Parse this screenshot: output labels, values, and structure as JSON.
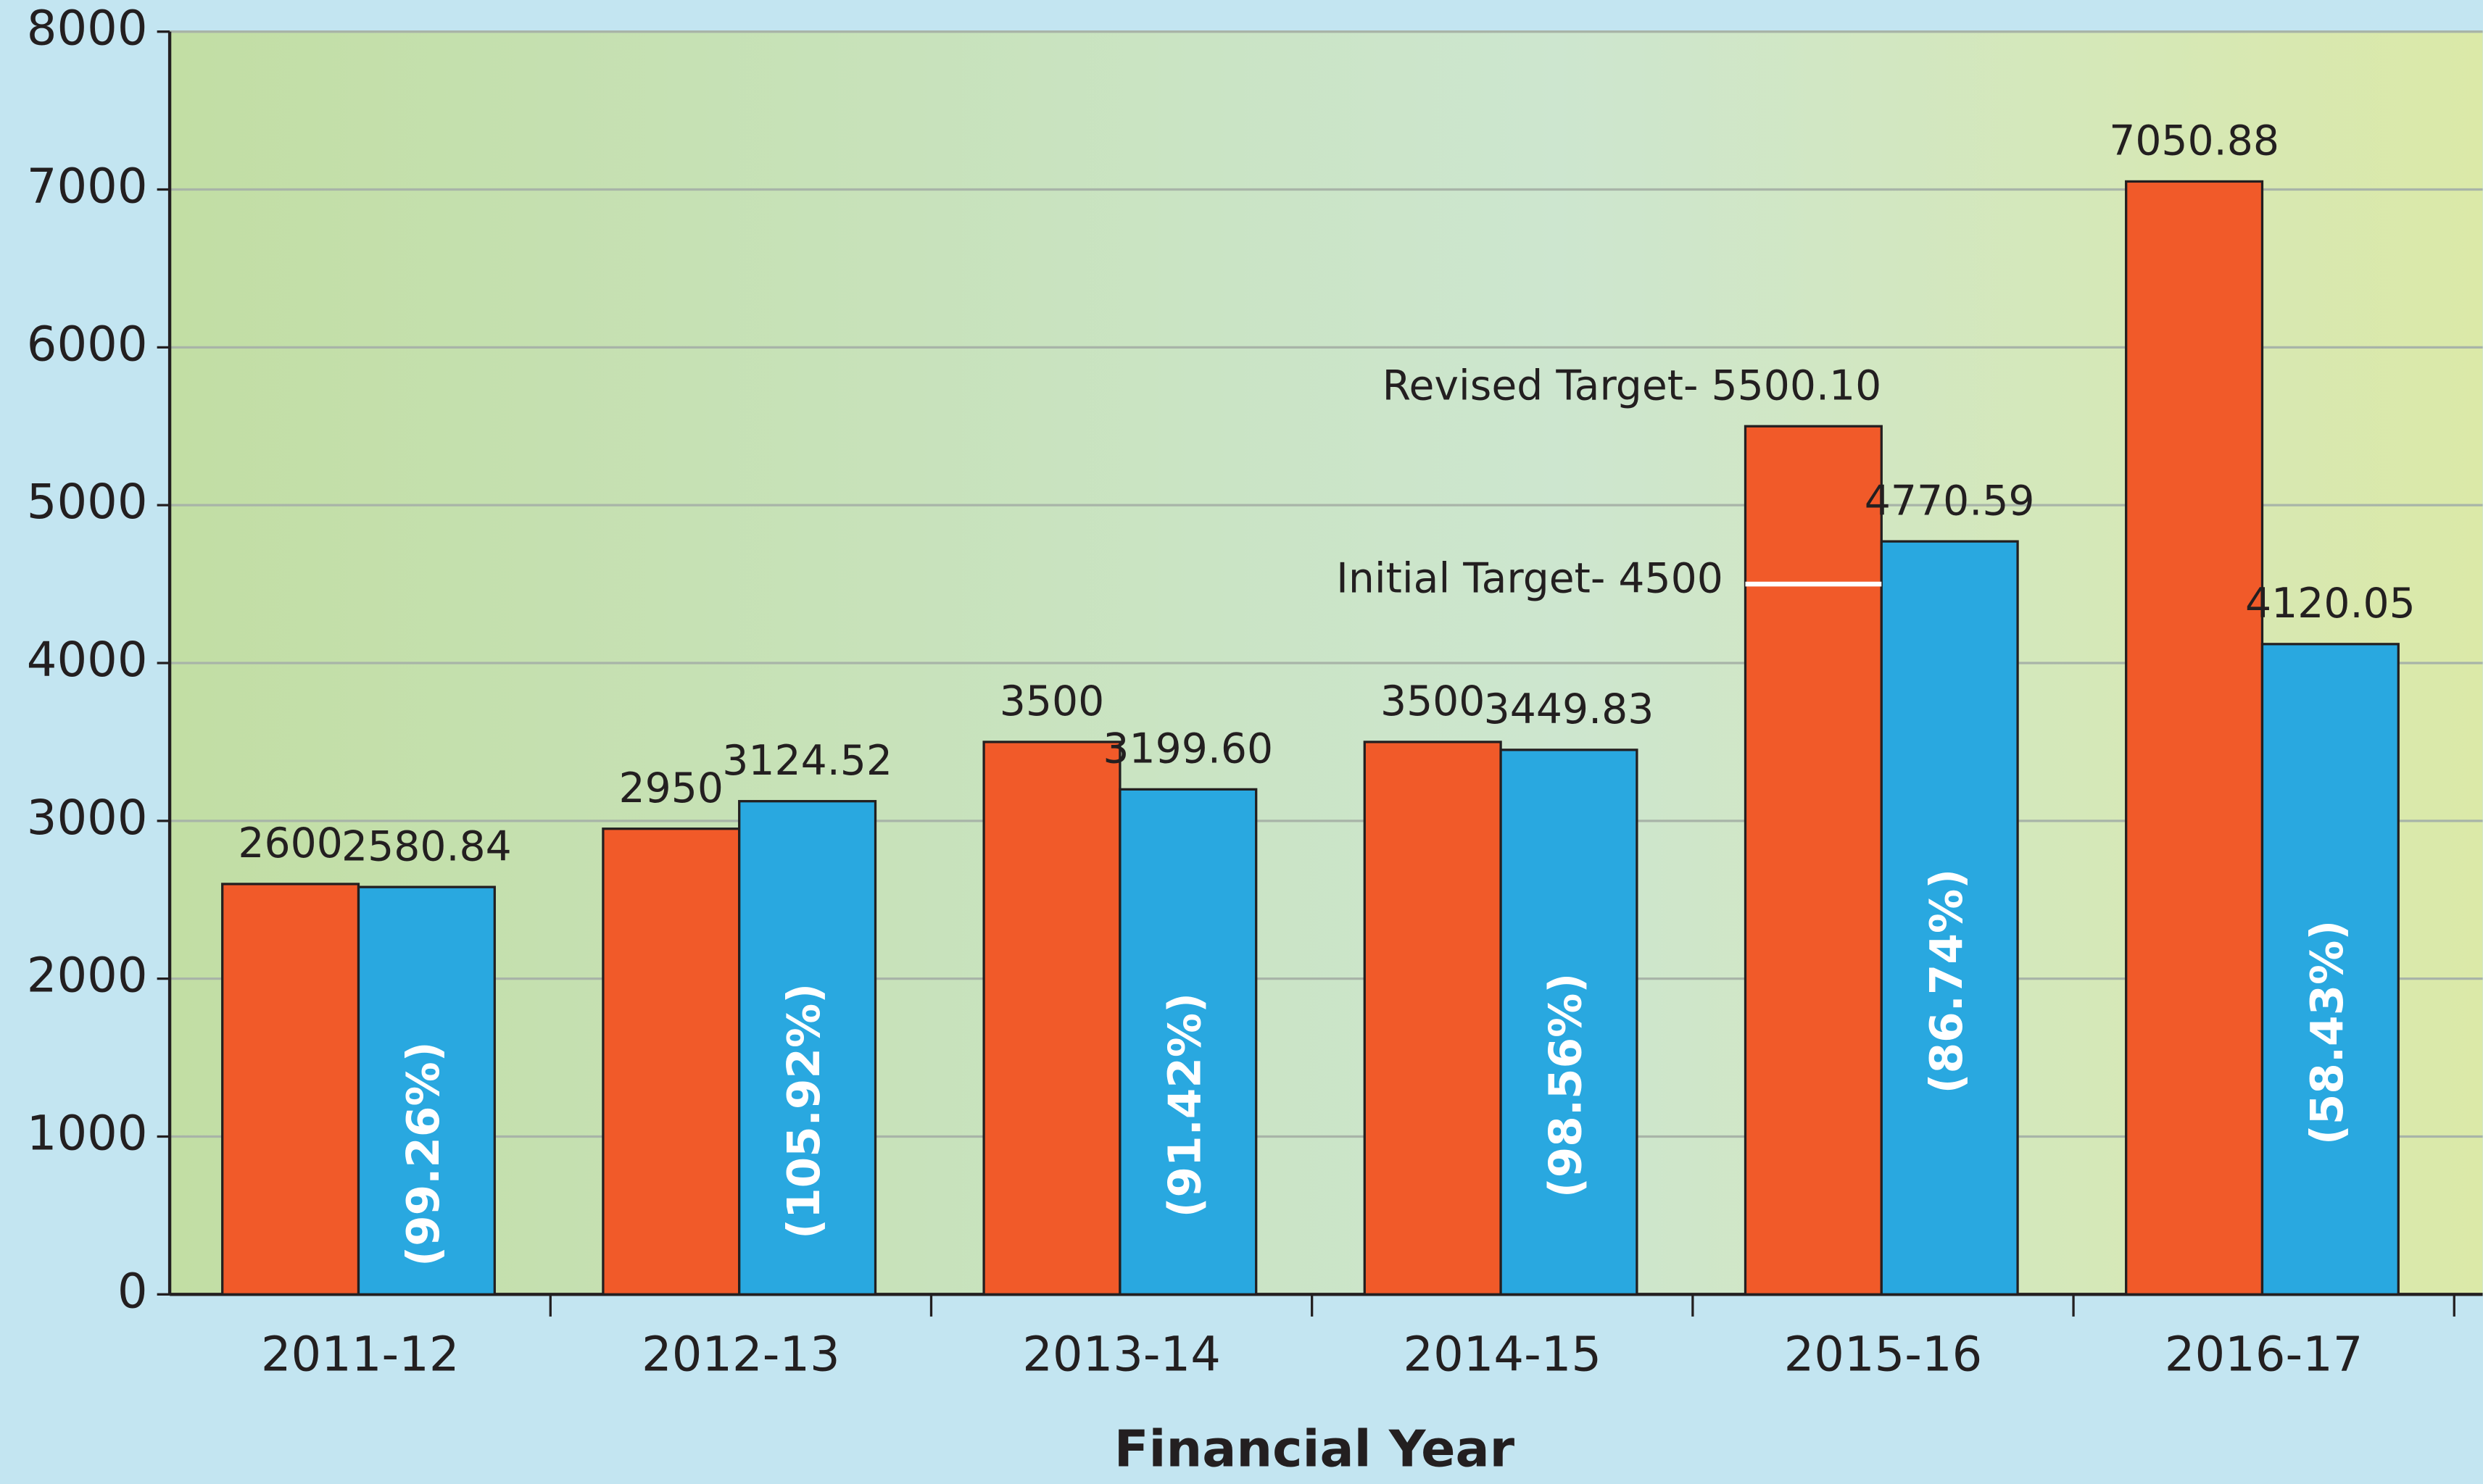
{
  "chart_data": {
    "type": "bar",
    "x_label": "Financial Year",
    "categories": [
      "2011-12",
      "2012-13",
      "2013-14",
      "2014-15",
      "2015-16",
      "2016-17"
    ],
    "series": [
      {
        "color": "#f15a29",
        "values": [
          2600,
          2950,
          3500,
          3500,
          5500.1,
          7050.88
        ],
        "value_labels": [
          "2600",
          "2950",
          "3500",
          "3500",
          "Revised Target- 5500.10",
          "7050.88"
        ]
      },
      {
        "color": "#29a8e0",
        "values": [
          2580.84,
          3124.52,
          3199.6,
          3449.83,
          4770.59,
          4120.05
        ],
        "value_labels": [
          "2580.84",
          "3124.52",
          "3199.60",
          "3449.83",
          "4770.59",
          "4120.05"
        ],
        "percent_labels": [
          "(99.26%)",
          "(105.92%)",
          "(91.42%)",
          "(98.56%)",
          "(86.74%)",
          "(58.43%)"
        ]
      }
    ],
    "annotations": [
      {
        "text": "Initial Target- 4500",
        "value": 4500,
        "category": 4
      }
    ],
    "ylim": [
      0,
      8000
    ],
    "yticks": [
      0,
      1000,
      2000,
      3000,
      4000,
      5000,
      6000,
      7000,
      8000
    ],
    "grid": true
  }
}
